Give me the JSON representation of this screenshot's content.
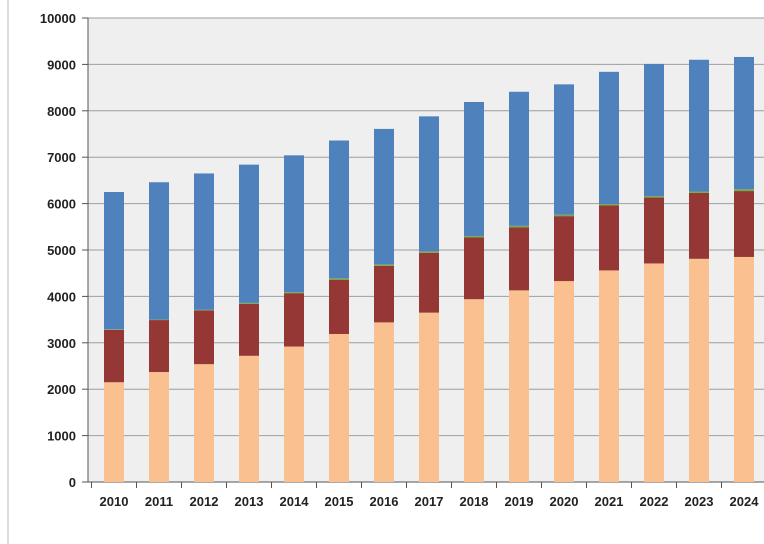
{
  "chart_data": {
    "type": "bar",
    "stacked": true,
    "title": "",
    "xlabel": "",
    "ylabel": "",
    "categories": [
      "2010",
      "2011",
      "2012",
      "2013",
      "2014",
      "2015",
      "2016",
      "2017",
      "2018",
      "2019",
      "2020",
      "2021",
      "2022",
      "2023",
      "2024"
    ],
    "ylim": [
      0,
      10000
    ],
    "yticks": [
      0,
      1000,
      2000,
      3000,
      4000,
      5000,
      6000,
      7000,
      8000,
      9000,
      10000
    ],
    "ytick_labels": [
      "0",
      "1000",
      "2000",
      "3000",
      "4000",
      "5000",
      "6000",
      "7000",
      "8000",
      "9000",
      "10000"
    ],
    "grid": true,
    "legend": "none",
    "series": [
      {
        "color": "#FAC090",
        "values": [
          2150,
          2370,
          2540,
          2720,
          2920,
          3190,
          3440,
          3650,
          3940,
          4130,
          4330,
          4560,
          4710,
          4810,
          4850
        ]
      },
      {
        "color": "#953735",
        "values": [
          1130,
          1120,
          1160,
          1120,
          1150,
          1170,
          1220,
          1290,
          1330,
          1360,
          1400,
          1400,
          1420,
          1420,
          1420
        ]
      },
      {
        "color": "#70AD47",
        "values": [
          10,
          10,
          10,
          20,
          20,
          30,
          30,
          30,
          30,
          30,
          30,
          30,
          30,
          30,
          40
        ]
      },
      {
        "color": "#4F81BD",
        "values": [
          2960,
          2960,
          2940,
          2980,
          2950,
          2970,
          2920,
          2910,
          2890,
          2890,
          2810,
          2850,
          2850,
          2840,
          2850
        ]
      }
    ],
    "plot_background": "#EFEFEF",
    "grid_color": "#9E9E9E"
  }
}
